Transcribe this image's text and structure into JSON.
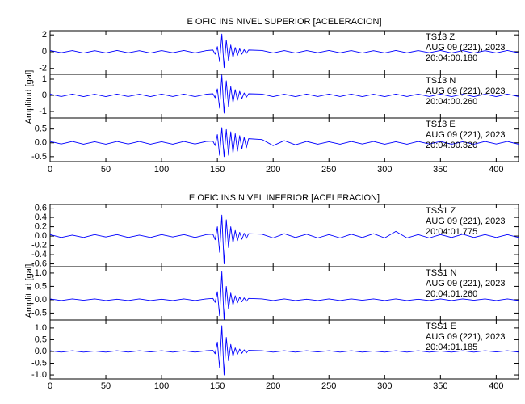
{
  "chart_data": [
    {
      "type": "line",
      "title": "E OFIC INS NIVEL SUPERIOR [ACELERACION]",
      "y_label": "Amplitud [gal]",
      "color": "#0000ff",
      "xlim": [
        0,
        420
      ],
      "xticks": [
        0,
        50,
        100,
        150,
        200,
        250,
        300,
        350,
        400
      ],
      "x": [
        0,
        10,
        20,
        30,
        40,
        50,
        60,
        70,
        80,
        90,
        100,
        110,
        120,
        130,
        140,
        146,
        148,
        150,
        152,
        154,
        156,
        158,
        160,
        162,
        164,
        166,
        168,
        170,
        172,
        174,
        176,
        178,
        190,
        200,
        210,
        220,
        230,
        240,
        250,
        260,
        270,
        280,
        290,
        300,
        310,
        320,
        330,
        340,
        350,
        360,
        370,
        380,
        390,
        400,
        410,
        420
      ],
      "panels": [
        {
          "ylim": [
            -2.7,
            2.5
          ],
          "yticks": [
            -2,
            0,
            2
          ],
          "annotation": [
            "TS13   Z",
            "AUG 09 (221), 2023",
            "20:04:00.180"
          ],
          "values": [
            0.15,
            -0.12,
            0.14,
            -0.15,
            0.12,
            -0.14,
            0.15,
            -0.13,
            0.12,
            -0.15,
            0.14,
            -0.12,
            0.15,
            -0.14,
            0.13,
            0.2,
            -0.3,
            0.6,
            -1.2,
            2.1,
            -1.9,
            1.4,
            -1.1,
            0.8,
            -0.7,
            0.5,
            -0.45,
            0.35,
            -0.3,
            0.25,
            -0.2,
            0.2,
            0.15,
            -0.14,
            0.13,
            -0.15,
            0.14,
            -0.12,
            0.15,
            -0.13,
            0.14,
            -0.15,
            0.12,
            -0.14,
            0.15,
            -0.13,
            0.14,
            -0.12,
            0.15,
            -0.14,
            0.13,
            -0.15,
            0.12,
            -0.14,
            0.15,
            -0.13
          ]
        },
        {
          "ylim": [
            -1.4,
            1.3
          ],
          "yticks": [
            -1,
            0,
            1
          ],
          "annotation": [
            "TS13   N",
            "AUG 09 (221), 2023",
            "20:04:00.260"
          ],
          "values": [
            0.08,
            -0.07,
            0.08,
            -0.08,
            0.07,
            -0.08,
            0.08,
            -0.07,
            0.07,
            -0.08,
            0.08,
            -0.07,
            0.08,
            -0.08,
            0.07,
            0.1,
            -0.15,
            0.4,
            -0.8,
            1.25,
            -1.1,
            0.9,
            -0.7,
            0.55,
            -0.45,
            0.35,
            -0.3,
            0.25,
            -0.2,
            0.15,
            -0.12,
            0.1,
            0.08,
            -0.08,
            0.07,
            -0.08,
            0.08,
            -0.07,
            0.08,
            -0.07,
            0.08,
            -0.08,
            0.07,
            -0.08,
            0.08,
            -0.07,
            0.08,
            -0.07,
            0.08,
            -0.08,
            0.07,
            -0.08,
            0.07,
            -0.08,
            0.08,
            -0.07
          ]
        },
        {
          "ylim": [
            -0.68,
            0.9
          ],
          "yticks": [
            -0.5,
            {
              "value": 0,
              "label": "0.0"
            },
            0.5
          ],
          "annotation": [
            "TS13   E",
            "AUG 09 (221), 2023",
            "20:04:00.320"
          ],
          "values": [
            0.05,
            -0.04,
            0.05,
            -0.05,
            0.04,
            -0.05,
            0.05,
            -0.04,
            0.05,
            -0.05,
            0.04,
            -0.05,
            0.05,
            -0.04,
            0.05,
            0.06,
            -0.1,
            0.3,
            -0.45,
            0.55,
            -0.5,
            0.48,
            -0.45,
            0.4,
            -0.38,
            0.33,
            -0.3,
            0.26,
            -0.22,
            0.2,
            -0.18,
            0.15,
            0.12,
            -0.1,
            0.08,
            -0.07,
            0.05,
            -0.05,
            0.04,
            -0.05,
            0.05,
            -0.04,
            0.05,
            -0.05,
            0.04,
            -0.05,
            0.05,
            -0.04,
            0.05,
            -0.05,
            0.04,
            -0.05,
            0.05,
            -0.04,
            0.05,
            -0.05
          ]
        }
      ]
    },
    {
      "type": "line",
      "title": "E OFIC INS NIVEL INFERIOR [ACELERACION]",
      "y_label": "Amplitud [gal]",
      "color": "#0000ff",
      "xlim": [
        0,
        420
      ],
      "xticks": [
        0,
        50,
        100,
        150,
        200,
        250,
        300,
        350,
        400
      ],
      "x": [
        0,
        10,
        20,
        30,
        40,
        50,
        60,
        70,
        80,
        90,
        100,
        110,
        120,
        130,
        140,
        146,
        148,
        150,
        152,
        154,
        156,
        158,
        160,
        162,
        164,
        166,
        168,
        170,
        172,
        174,
        176,
        178,
        190,
        200,
        210,
        220,
        230,
        240,
        250,
        260,
        270,
        280,
        290,
        300,
        310,
        320,
        330,
        340,
        350,
        360,
        370,
        380,
        390,
        400,
        410,
        420
      ],
      "panels": [
        {
          "ylim": [
            -0.66,
            0.68
          ],
          "yticks": [
            -0.6,
            -0.4,
            -0.2,
            {
              "value": 0,
              "label": "0.0"
            },
            0.2,
            0.4,
            0.6
          ],
          "annotation": [
            "TSS1   Z",
            "AUG 09 (221), 2023",
            "20:04:01.775"
          ],
          "values": [
            0.03,
            -0.03,
            0.02,
            -0.03,
            0.03,
            -0.02,
            0.03,
            -0.03,
            0.02,
            -0.03,
            0.03,
            -0.02,
            0.03,
            -0.03,
            0.03,
            0.04,
            -0.08,
            0.2,
            -0.35,
            0.45,
            -0.6,
            0.35,
            -0.25,
            0.2,
            -0.15,
            0.12,
            -0.1,
            0.08,
            -0.07,
            0.06,
            -0.05,
            0.05,
            0.04,
            -0.04,
            0.05,
            -0.03,
            0.04,
            -0.04,
            0.03,
            -0.04,
            0.04,
            -0.03,
            0.05,
            -0.04,
            0.1,
            -0.04,
            0.03,
            -0.04,
            0.03,
            -0.03,
            0.04,
            -0.03,
            0.03,
            -0.03,
            0.03,
            -0.03
          ]
        },
        {
          "ylim": [
            -0.76,
            1.24
          ],
          "yticks": [
            -0.5,
            {
              "value": 0,
              "label": "0.0"
            },
            0.5,
            {
              "value": 1,
              "label": "1.0"
            }
          ],
          "annotation": [
            "TSS1   N",
            "AUG 09 (221), 2023",
            "20:04:01.260"
          ],
          "values": [
            0.03,
            -0.03,
            0.03,
            -0.02,
            0.03,
            -0.03,
            0.02,
            -0.03,
            0.03,
            -0.03,
            0.02,
            -0.03,
            0.03,
            -0.03,
            0.03,
            0.05,
            -0.1,
            0.3,
            -0.6,
            1.05,
            -0.75,
            0.5,
            -0.35,
            0.25,
            -0.2,
            0.15,
            -0.12,
            0.1,
            -0.08,
            0.07,
            -0.06,
            0.05,
            0.03,
            -0.03,
            0.03,
            -0.03,
            0.02,
            -0.03,
            0.03,
            -0.03,
            0.03,
            -0.02,
            0.03,
            -0.03,
            0.03,
            -0.03,
            0.02,
            -0.03,
            0.03,
            -0.03,
            0.03,
            -0.02,
            0.03,
            -0.03,
            0.03,
            -0.03
          ]
        },
        {
          "ylim": [
            -1.17,
            1.34
          ],
          "yticks": [
            {
              "value": -1,
              "label": "-1.0"
            },
            -0.5,
            {
              "value": 0,
              "label": "0.0"
            },
            0.5,
            {
              "value": 1,
              "label": "1.0"
            }
          ],
          "annotation": [
            "TSS1   E",
            "AUG 09 (221), 2023",
            "20:04:01.185"
          ],
          "values": [
            0.03,
            -0.03,
            0.03,
            -0.03,
            0.02,
            -0.03,
            0.03,
            -0.03,
            0.03,
            -0.02,
            0.03,
            -0.03,
            0.03,
            -0.03,
            0.03,
            0.05,
            -0.1,
            0.4,
            -0.7,
            1.1,
            -1.0,
            0.6,
            -0.4,
            0.3,
            -0.2,
            0.15,
            -0.12,
            0.1,
            -0.08,
            0.07,
            -0.06,
            0.05,
            0.03,
            -0.03,
            0.03,
            -0.03,
            0.03,
            -0.02,
            0.03,
            -0.03,
            0.03,
            -0.03,
            0.02,
            -0.03,
            0.03,
            -0.03,
            0.03,
            -0.03,
            0.02,
            -0.03,
            0.03,
            -0.03,
            0.03,
            -0.02,
            0.03,
            -0.03
          ]
        }
      ]
    }
  ]
}
